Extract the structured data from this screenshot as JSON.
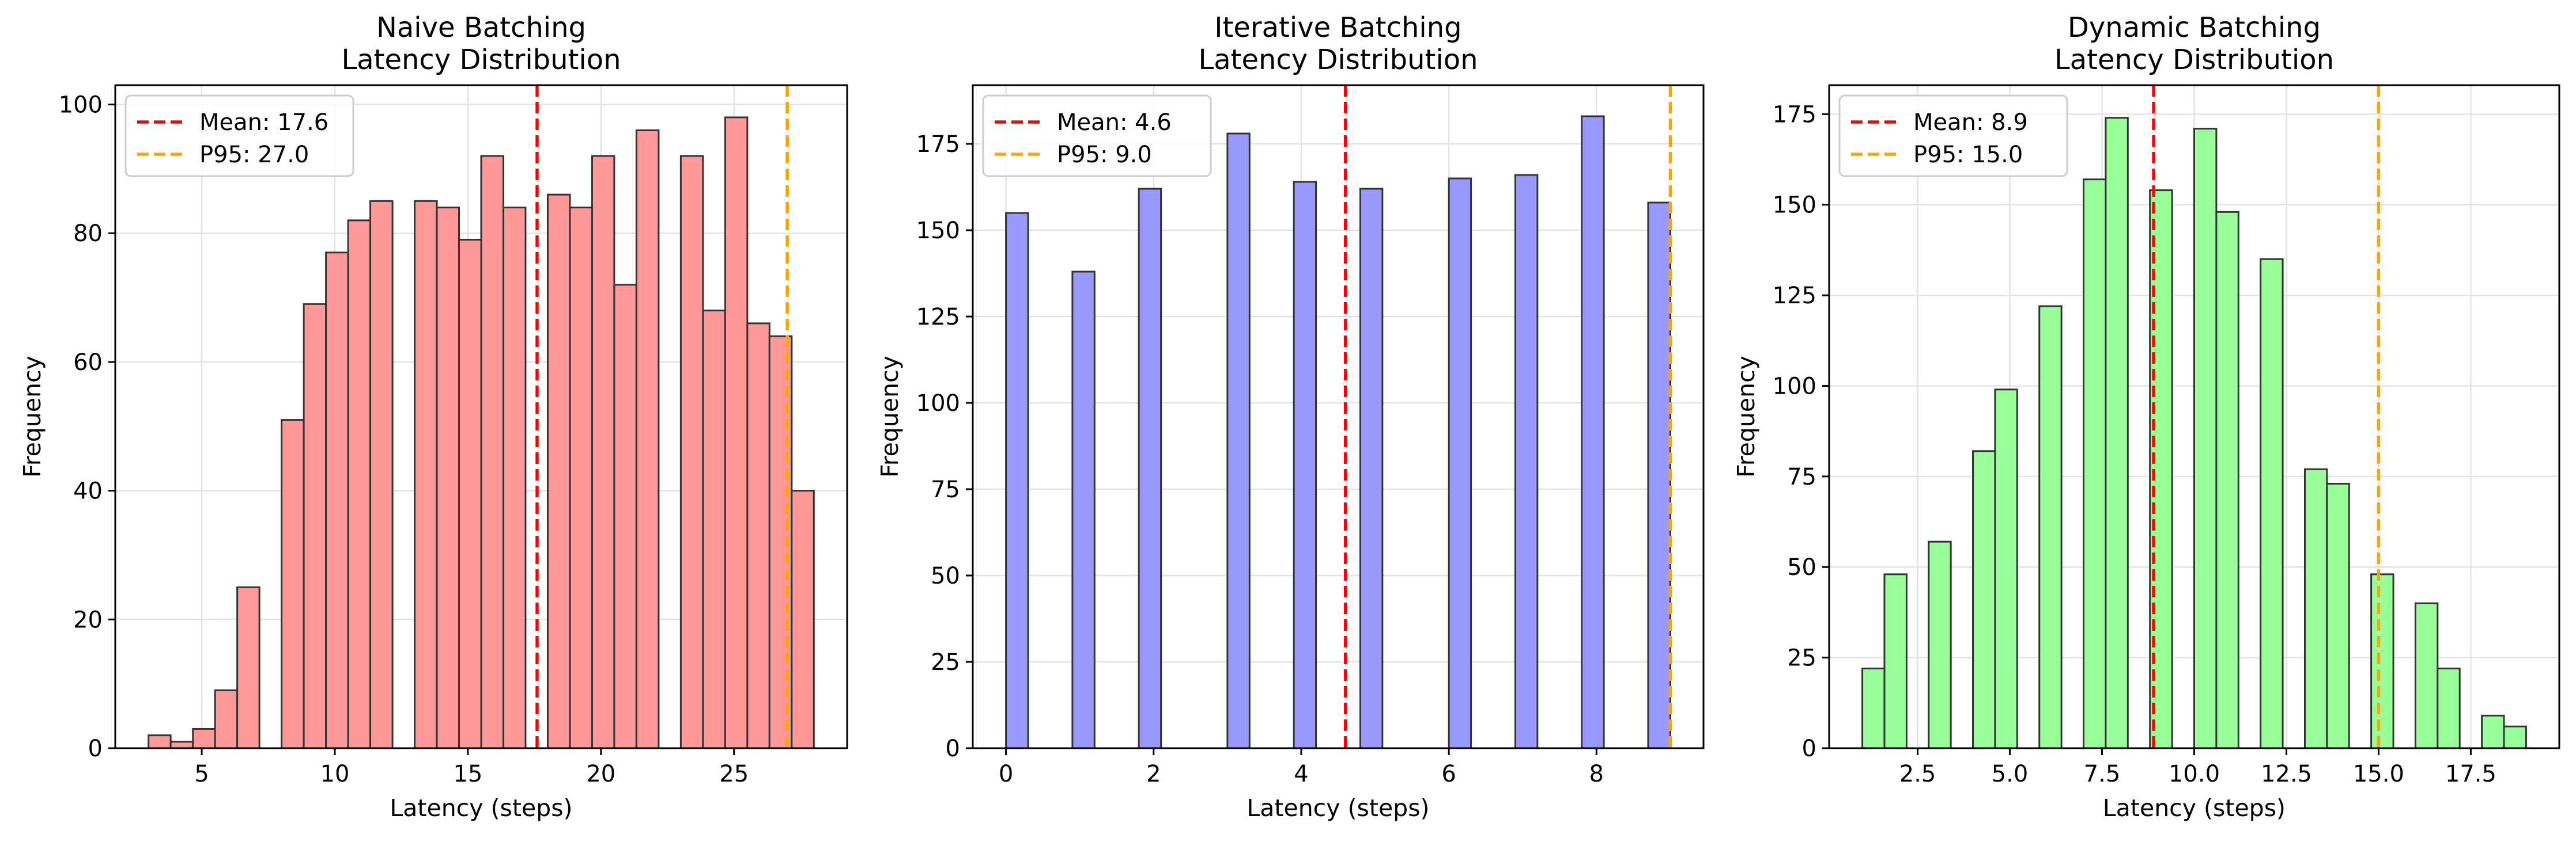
{
  "chart_data": [
    {
      "type": "bar",
      "title": "Naive Batching\nLatency Distribution",
      "xlabel": "Latency (steps)",
      "ylabel": "Frequency",
      "bar_color": "#ff9999",
      "xlim": [
        1.75,
        29.25
      ],
      "ylim": [
        0,
        103
      ],
      "xticks": [
        5,
        10,
        15,
        20,
        25
      ],
      "yticks": [
        0,
        20,
        40,
        60,
        80,
        100
      ],
      "bins": [
        {
          "x0": 3.0,
          "x1": 3.833,
          "count": 2
        },
        {
          "x0": 3.833,
          "x1": 4.667,
          "count": 1
        },
        {
          "x0": 4.667,
          "x1": 5.5,
          "count": 3
        },
        {
          "x0": 5.5,
          "x1": 6.333,
          "count": 9
        },
        {
          "x0": 6.333,
          "x1": 7.167,
          "count": 25
        },
        {
          "x0": 8.0,
          "x1": 8.833,
          "count": 51
        },
        {
          "x0": 8.833,
          "x1": 9.667,
          "count": 69
        },
        {
          "x0": 9.667,
          "x1": 10.5,
          "count": 77
        },
        {
          "x0": 10.5,
          "x1": 11.333,
          "count": 82
        },
        {
          "x0": 11.333,
          "x1": 12.167,
          "count": 85
        },
        {
          "x0": 13.0,
          "x1": 13.833,
          "count": 85
        },
        {
          "x0": 13.833,
          "x1": 14.667,
          "count": 84
        },
        {
          "x0": 14.667,
          "x1": 15.5,
          "count": 79
        },
        {
          "x0": 15.5,
          "x1": 16.333,
          "count": 92
        },
        {
          "x0": 16.333,
          "x1": 17.167,
          "count": 84
        },
        {
          "x0": 18.0,
          "x1": 18.833,
          "count": 86
        },
        {
          "x0": 18.833,
          "x1": 19.667,
          "count": 84
        },
        {
          "x0": 19.667,
          "x1": 20.5,
          "count": 92
        },
        {
          "x0": 20.5,
          "x1": 21.333,
          "count": 72
        },
        {
          "x0": 21.333,
          "x1": 22.167,
          "count": 96
        },
        {
          "x0": 23.0,
          "x1": 23.833,
          "count": 92
        },
        {
          "x0": 23.833,
          "x1": 24.667,
          "count": 68
        },
        {
          "x0": 24.667,
          "x1": 25.5,
          "count": 98
        },
        {
          "x0": 25.5,
          "x1": 26.333,
          "count": 66
        },
        {
          "x0": 26.333,
          "x1": 27.167,
          "count": 64
        },
        {
          "x0": 27.167,
          "x1": 28.0,
          "count": 40
        }
      ],
      "lines": [
        {
          "label": "Mean: 17.6",
          "x": 17.6,
          "color": "#ff0000"
        },
        {
          "label": "P95: 27.0",
          "x": 27.0,
          "color": "#ffa500"
        }
      ],
      "legend_position": "upper left",
      "grid": true
    },
    {
      "type": "bar",
      "title": "Iterative Batching\nLatency Distribution",
      "xlabel": "Latency (steps)",
      "ylabel": "Frequency",
      "bar_color": "#9999ff",
      "xlim": [
        -0.45,
        9.45
      ],
      "ylim": [
        0,
        192
      ],
      "xticks": [
        0,
        2,
        4,
        6,
        8
      ],
      "yticks": [
        0,
        25,
        50,
        75,
        100,
        125,
        150,
        175
      ],
      "bins": [
        {
          "x0": 0.0,
          "x1": 0.3,
          "count": 155
        },
        {
          "x0": 0.9,
          "x1": 1.2,
          "count": 138
        },
        {
          "x0": 1.8,
          "x1": 2.1,
          "count": 162
        },
        {
          "x0": 3.0,
          "x1": 3.3,
          "count": 178
        },
        {
          "x0": 3.9,
          "x1": 4.2,
          "count": 164
        },
        {
          "x0": 4.8,
          "x1": 5.1,
          "count": 162
        },
        {
          "x0": 6.0,
          "x1": 6.3,
          "count": 165
        },
        {
          "x0": 6.9,
          "x1": 7.2,
          "count": 166
        },
        {
          "x0": 7.8,
          "x1": 8.1,
          "count": 183
        },
        {
          "x0": 8.7,
          "x1": 9.0,
          "count": 158
        }
      ],
      "lines": [
        {
          "label": "Mean: 4.6",
          "x": 4.6,
          "color": "#ff0000"
        },
        {
          "label": "P95: 9.0",
          "x": 9.0,
          "color": "#ffa500"
        }
      ],
      "legend_position": "upper left",
      "grid": true
    },
    {
      "type": "bar",
      "title": "Dynamic Batching\nLatency Distribution",
      "xlabel": "Latency (steps)",
      "ylabel": "Frequency",
      "bar_color": "#99ff99",
      "xlim": [
        0.1,
        19.9
      ],
      "ylim": [
        0,
        183
      ],
      "xticks": [
        2.5,
        5.0,
        7.5,
        10.0,
        12.5,
        15.0,
        17.5
      ],
      "xtick_labels": [
        "2.5",
        "5.0",
        "7.5",
        "10.0",
        "12.5",
        "15.0",
        "17.5"
      ],
      "yticks": [
        0,
        25,
        50,
        75,
        100,
        125,
        150,
        175
      ],
      "bins": [
        {
          "x0": 1.0,
          "x1": 1.6,
          "count": 22
        },
        {
          "x0": 1.6,
          "x1": 2.2,
          "count": 48
        },
        {
          "x0": 2.8,
          "x1": 3.4,
          "count": 57
        },
        {
          "x0": 4.0,
          "x1": 4.6,
          "count": 82
        },
        {
          "x0": 4.6,
          "x1": 5.2,
          "count": 99
        },
        {
          "x0": 5.8,
          "x1": 6.4,
          "count": 122
        },
        {
          "x0": 7.0,
          "x1": 7.6,
          "count": 157
        },
        {
          "x0": 7.6,
          "x1": 8.2,
          "count": 174
        },
        {
          "x0": 8.8,
          "x1": 9.4,
          "count": 154
        },
        {
          "x0": 10.0,
          "x1": 10.6,
          "count": 171
        },
        {
          "x0": 10.6,
          "x1": 11.2,
          "count": 148
        },
        {
          "x0": 11.8,
          "x1": 12.4,
          "count": 135
        },
        {
          "x0": 13.0,
          "x1": 13.6,
          "count": 77
        },
        {
          "x0": 13.6,
          "x1": 14.2,
          "count": 73
        },
        {
          "x0": 14.8,
          "x1": 15.4,
          "count": 48
        },
        {
          "x0": 16.0,
          "x1": 16.6,
          "count": 40
        },
        {
          "x0": 16.6,
          "x1": 17.2,
          "count": 22
        },
        {
          "x0": 17.8,
          "x1": 18.4,
          "count": 9
        },
        {
          "x0": 18.4,
          "x1": 19.0,
          "count": 6
        }
      ],
      "lines": [
        {
          "label": "Mean: 8.9",
          "x": 8.9,
          "color": "#ff0000"
        },
        {
          "label": "P95: 15.0",
          "x": 15.0,
          "color": "#ffa500"
        }
      ],
      "legend_position": "upper left",
      "grid": true
    }
  ]
}
